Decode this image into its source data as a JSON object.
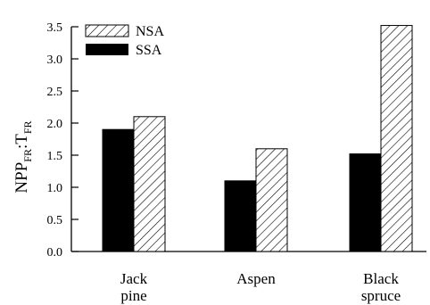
{
  "chart_data": {
    "type": "bar",
    "categories": [
      [
        "Jack",
        "pine"
      ],
      [
        "Aspen"
      ],
      [
        "Black",
        "spruce"
      ]
    ],
    "series": [
      {
        "name": "SSA",
        "values": [
          1.9,
          1.1,
          1.52
        ],
        "fill": "solid",
        "color": "#000000"
      },
      {
        "name": "NSA",
        "values": [
          2.1,
          1.6,
          3.52
        ],
        "fill": "diagonal-hatch",
        "color": "#000000"
      }
    ],
    "ylabel": {
      "base": "NPP",
      "sub1": "FR",
      "sep": ":T",
      "sub2": "FR"
    },
    "ylim": [
      0,
      3.5
    ],
    "yticks": [
      "0.0",
      "0.5",
      "1.0",
      "1.5",
      "2.0",
      "2.5",
      "3.0",
      "3.5"
    ],
    "legend": {
      "position": "top-left",
      "order": [
        "NSA",
        "SSA"
      ]
    },
    "grid": false
  }
}
